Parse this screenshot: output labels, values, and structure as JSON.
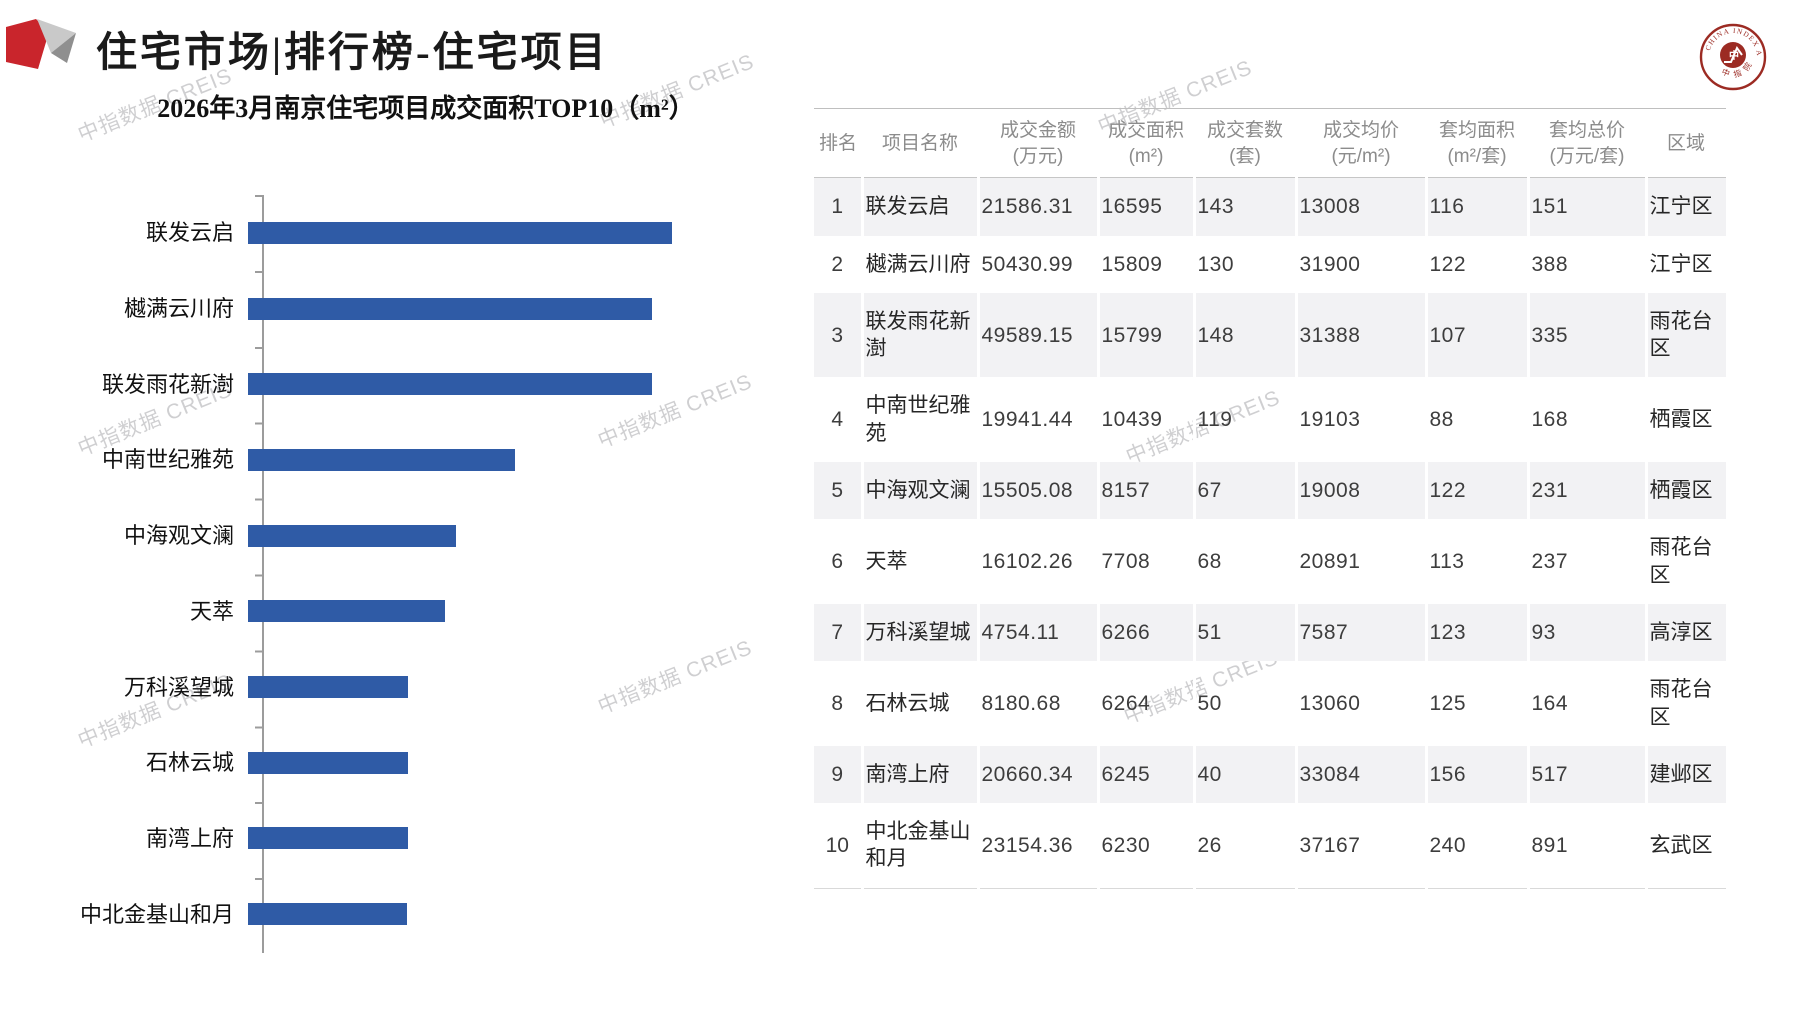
{
  "page": {
    "header_title": "住宅市场|排行榜-住宅项目",
    "watermark": "中指数据 CREIS",
    "seal_text_top": "CHINA INDEX ACADEMY",
    "seal_text_bottom": "中 指 院",
    "seal_center": "中"
  },
  "colors": {
    "bar_blue": "#2F5BA6",
    "accent_red": "#C9252C",
    "seal_red": "#9C2B23",
    "row_shade": "#F2F2F4",
    "header_text": "#8C8C8C"
  },
  "chart_data": {
    "type": "bar",
    "orientation": "horizontal",
    "title": "2026年3月南京住宅项目成交面积TOP10（m²）",
    "categories": [
      "联发云启",
      "樾满云川府",
      "联发雨花新澍",
      "中南世纪雅苑",
      "中海观文澜",
      "天萃",
      "万科溪望城",
      "石林云城",
      "南湾上府",
      "中北金基山和月"
    ],
    "values": [
      16595,
      15809,
      15799,
      10439,
      8157,
      7708,
      6266,
      6264,
      6245,
      6230
    ],
    "xlabel": "",
    "ylabel": "",
    "xlim": [
      0,
      17000
    ],
    "unit": "m²",
    "grid": false,
    "legend": false
  },
  "table": {
    "columns": [
      {
        "t": "排名",
        "u": ""
      },
      {
        "t": "项目名称",
        "u": ""
      },
      {
        "t": "成交金额",
        "u": "(万元)"
      },
      {
        "t": "成交面积",
        "u": "(m²)"
      },
      {
        "t": "成交套数",
        "u": "(套)"
      },
      {
        "t": "成交均价",
        "u": "(元/m²)"
      },
      {
        "t": "套均面积",
        "u": "(m²/套)"
      },
      {
        "t": "套均总价",
        "u": "(万元/套)"
      },
      {
        "t": "区域",
        "u": ""
      }
    ],
    "rows": [
      [
        "1",
        "联发云启",
        "21586.31",
        "16595",
        "143",
        "13008",
        "116",
        "151",
        "江宁区"
      ],
      [
        "2",
        "樾满云川府",
        "50430.99",
        "15809",
        "130",
        "31900",
        "122",
        "388",
        "江宁区"
      ],
      [
        "3",
        "联发雨花新澍",
        "49589.15",
        "15799",
        "148",
        "31388",
        "107",
        "335",
        "雨花台区"
      ],
      [
        "4",
        "中南世纪雅苑",
        "19941.44",
        "10439",
        "119",
        "19103",
        "88",
        "168",
        "栖霞区"
      ],
      [
        "5",
        "中海观文澜",
        "15505.08",
        "8157",
        "67",
        "19008",
        "122",
        "231",
        "栖霞区"
      ],
      [
        "6",
        "天萃",
        "16102.26",
        "7708",
        "68",
        "20891",
        "113",
        "237",
        "雨花台区"
      ],
      [
        "7",
        "万科溪望城",
        "4754.11",
        "6266",
        "51",
        "7587",
        "123",
        "93",
        "高淳区"
      ],
      [
        "8",
        "石林云城",
        "8180.68",
        "6264",
        "50",
        "13060",
        "125",
        "164",
        "雨花台区"
      ],
      [
        "9",
        "南湾上府",
        "20660.34",
        "6245",
        "40",
        "33084",
        "156",
        "517",
        "建邺区"
      ],
      [
        "10",
        "中北金基山和月",
        "23154.36",
        "6230",
        "26",
        "37167",
        "240",
        "891",
        "玄武区"
      ]
    ]
  }
}
